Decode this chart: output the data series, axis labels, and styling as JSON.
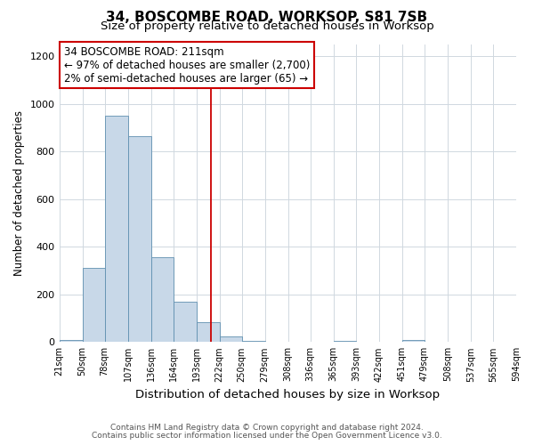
{
  "title": "34, BOSCOMBE ROAD, WORKSOP, S81 7SB",
  "subtitle": "Size of property relative to detached houses in Worksop",
  "xlabel": "Distribution of detached houses by size in Worksop",
  "ylabel": "Number of detached properties",
  "footnote1": "Contains HM Land Registry data © Crown copyright and database right 2024.",
  "footnote2": "Contains public sector information licensed under the Open Government Licence v3.0.",
  "bar_edges": [
    21,
    50,
    78,
    107,
    136,
    164,
    193,
    222,
    250,
    279,
    308,
    336,
    365,
    393,
    422,
    451,
    479,
    508,
    537,
    565,
    594
  ],
  "bar_heights": [
    10,
    310,
    950,
    865,
    355,
    170,
    85,
    25,
    5,
    0,
    0,
    0,
    5,
    0,
    0,
    10,
    0,
    0,
    0,
    0
  ],
  "bar_color": "#c8d8e8",
  "bar_edge_color": "#6090b0",
  "vline_x": 211,
  "vline_color": "#cc0000",
  "annotation_line1": "34 BOSCOMBE ROAD: 211sqm",
  "annotation_line2": "← 97% of detached houses are smaller (2,700)",
  "annotation_line3": "2% of semi-detached houses are larger (65) →",
  "ylim": [
    0,
    1250
  ],
  "yticks": [
    0,
    200,
    400,
    600,
    800,
    1000,
    1200
  ],
  "tick_labels": [
    "21sqm",
    "50sqm",
    "78sqm",
    "107sqm",
    "136sqm",
    "164sqm",
    "193sqm",
    "222sqm",
    "250sqm",
    "279sqm",
    "308sqm",
    "336sqm",
    "365sqm",
    "393sqm",
    "422sqm",
    "451sqm",
    "479sqm",
    "508sqm",
    "537sqm",
    "565sqm",
    "594sqm"
  ],
  "title_fontsize": 11,
  "subtitle_fontsize": 9.5,
  "xlabel_fontsize": 9.5,
  "ylabel_fontsize": 8.5,
  "annotation_fontsize": 8.5,
  "tick_fontsize": 7,
  "ytick_fontsize": 8,
  "footnote_fontsize": 6.5,
  "background_color": "#ffffff",
  "grid_color": "#d0d8e0"
}
